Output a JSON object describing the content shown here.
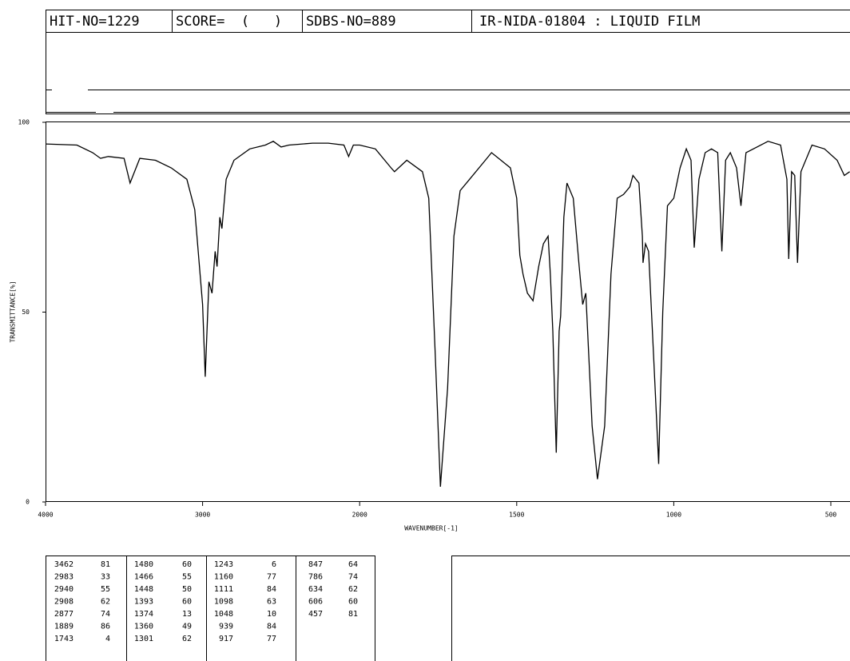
{
  "header": {
    "hit_no": "HIT-NO=1229",
    "score": "SCORE=  (   )",
    "sdbs_no": "SDBS-NO=889",
    "sample": "IR-NIDA-01804 : LIQUID FILM"
  },
  "chart_data": {
    "type": "line",
    "x_label": "WAVENUMBER[-1]",
    "y_label": "TRANSMITTANCE[%]",
    "xlim": [
      4000,
      400
    ],
    "xticks": [
      4000,
      3000,
      2000,
      1500,
      1000,
      500
    ],
    "ylim": [
      0,
      100
    ],
    "yticks": [
      0,
      50,
      100
    ],
    "color": "#000000",
    "x": [
      4000,
      3800,
      3700,
      3650,
      3600,
      3500,
      3462,
      3400,
      3300,
      3200,
      3100,
      3050,
      3000,
      2983,
      2960,
      2940,
      2920,
      2908,
      2890,
      2877,
      2850,
      2800,
      2700,
      2600,
      2550,
      2500,
      2450,
      2300,
      2200,
      2100,
      2070,
      2040,
      2000,
      1950,
      1900,
      1889,
      1850,
      1800,
      1780,
      1760,
      1743,
      1720,
      1700,
      1680,
      1650,
      1600,
      1580,
      1550,
      1520,
      1500,
      1490,
      1480,
      1466,
      1448,
      1430,
      1415,
      1400,
      1393,
      1385,
      1374,
      1365,
      1360,
      1350,
      1340,
      1320,
      1301,
      1290,
      1280,
      1260,
      1243,
      1220,
      1200,
      1180,
      1160,
      1140,
      1130,
      1111,
      1100,
      1098,
      1090,
      1080,
      1065,
      1048,
      1035,
      1020,
      1000,
      980,
      960,
      945,
      935,
      920,
      900,
      880,
      860,
      847,
      835,
      820,
      800,
      786,
      770,
      700,
      660,
      640,
      634,
      625,
      615,
      606,
      595,
      560,
      520,
      480,
      457,
      440
    ],
    "values": [
      94.3,
      94,
      92,
      90.5,
      91,
      90.5,
      84,
      90.5,
      90,
      88,
      85,
      77,
      52,
      33,
      58,
      55,
      66,
      62,
      75,
      72,
      85,
      90,
      93,
      94,
      95,
      93.5,
      94,
      94.5,
      94.5,
      94,
      91,
      94,
      94,
      93,
      88,
      87,
      90,
      87,
      80,
      40,
      4,
      30,
      70,
      82,
      85,
      90,
      92,
      90,
      88,
      80,
      65,
      60,
      55,
      53,
      62,
      68,
      70,
      60,
      45,
      13,
      45,
      49,
      75,
      84,
      80,
      62,
      52,
      55,
      20,
      6,
      20,
      60,
      80,
      81,
      83,
      86,
      84,
      70,
      63,
      68,
      66,
      40,
      10,
      50,
      78,
      80,
      88,
      93,
      90,
      67,
      85,
      92,
      93,
      92,
      66,
      90,
      92,
      88,
      78,
      92,
      95,
      94,
      85,
      64,
      87,
      86,
      63,
      87,
      94,
      93,
      90,
      86,
      87
    ]
  },
  "peak_table": [
    [
      [
        3462,
        81
      ],
      [
        2983,
        33
      ],
      [
        2940,
        55
      ],
      [
        2908,
        62
      ],
      [
        2877,
        74
      ],
      [
        1889,
        86
      ],
      [
        1743,
        4
      ]
    ],
    [
      [
        1480,
        60
      ],
      [
        1466,
        55
      ],
      [
        1448,
        50
      ],
      [
        1393,
        60
      ],
      [
        1374,
        13
      ],
      [
        1360,
        49
      ],
      [
        1301,
        62
      ]
    ],
    [
      [
        1243,
        6
      ],
      [
        1160,
        77
      ],
      [
        1111,
        84
      ],
      [
        1098,
        63
      ],
      [
        1048,
        10
      ],
      [
        939,
        84
      ],
      [
        917,
        77
      ]
    ],
    [
      [
        847,
        64
      ],
      [
        786,
        74
      ],
      [
        634,
        62
      ],
      [
        606,
        60
      ],
      [
        457,
        81
      ]
    ]
  ]
}
